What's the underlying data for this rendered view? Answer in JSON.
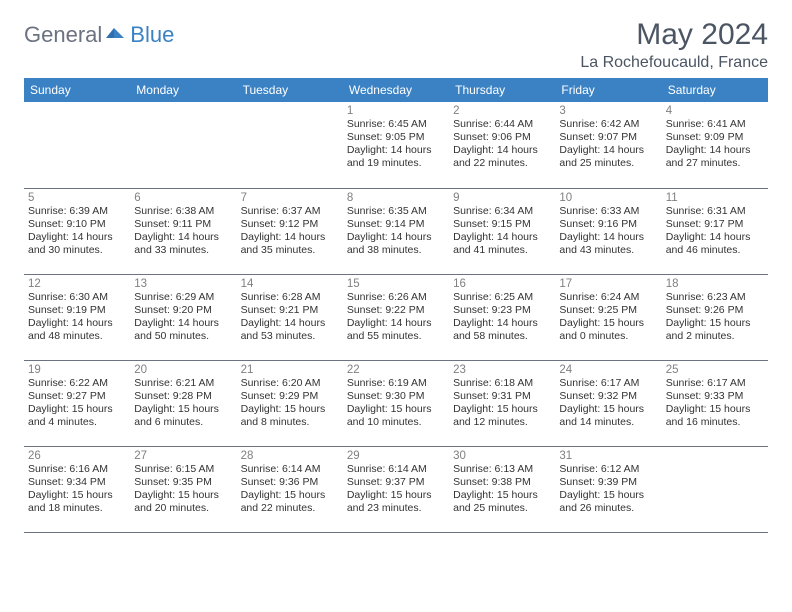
{
  "brand": {
    "part1": "General",
    "part2": "Blue"
  },
  "title": "May 2024",
  "location": "La Rochefoucauld, France",
  "weekdays": [
    "Sunday",
    "Monday",
    "Tuesday",
    "Wednesday",
    "Thursday",
    "Friday",
    "Saturday"
  ],
  "colors": {
    "header_bg": "#3b82c4",
    "header_text": "#ffffff",
    "daynum": "#808080",
    "body_text": "#333333",
    "rule": "#6b7280"
  },
  "grid": [
    [
      null,
      null,
      null,
      {
        "n": "1",
        "sr": "6:45 AM",
        "ss": "9:05 PM",
        "dl": "14 hours and 19 minutes."
      },
      {
        "n": "2",
        "sr": "6:44 AM",
        "ss": "9:06 PM",
        "dl": "14 hours and 22 minutes."
      },
      {
        "n": "3",
        "sr": "6:42 AM",
        "ss": "9:07 PM",
        "dl": "14 hours and 25 minutes."
      },
      {
        "n": "4",
        "sr": "6:41 AM",
        "ss": "9:09 PM",
        "dl": "14 hours and 27 minutes."
      }
    ],
    [
      {
        "n": "5",
        "sr": "6:39 AM",
        "ss": "9:10 PM",
        "dl": "14 hours and 30 minutes."
      },
      {
        "n": "6",
        "sr": "6:38 AM",
        "ss": "9:11 PM",
        "dl": "14 hours and 33 minutes."
      },
      {
        "n": "7",
        "sr": "6:37 AM",
        "ss": "9:12 PM",
        "dl": "14 hours and 35 minutes."
      },
      {
        "n": "8",
        "sr": "6:35 AM",
        "ss": "9:14 PM",
        "dl": "14 hours and 38 minutes."
      },
      {
        "n": "9",
        "sr": "6:34 AM",
        "ss": "9:15 PM",
        "dl": "14 hours and 41 minutes."
      },
      {
        "n": "10",
        "sr": "6:33 AM",
        "ss": "9:16 PM",
        "dl": "14 hours and 43 minutes."
      },
      {
        "n": "11",
        "sr": "6:31 AM",
        "ss": "9:17 PM",
        "dl": "14 hours and 46 minutes."
      }
    ],
    [
      {
        "n": "12",
        "sr": "6:30 AM",
        "ss": "9:19 PM",
        "dl": "14 hours and 48 minutes."
      },
      {
        "n": "13",
        "sr": "6:29 AM",
        "ss": "9:20 PM",
        "dl": "14 hours and 50 minutes."
      },
      {
        "n": "14",
        "sr": "6:28 AM",
        "ss": "9:21 PM",
        "dl": "14 hours and 53 minutes."
      },
      {
        "n": "15",
        "sr": "6:26 AM",
        "ss": "9:22 PM",
        "dl": "14 hours and 55 minutes."
      },
      {
        "n": "16",
        "sr": "6:25 AM",
        "ss": "9:23 PM",
        "dl": "14 hours and 58 minutes."
      },
      {
        "n": "17",
        "sr": "6:24 AM",
        "ss": "9:25 PM",
        "dl": "15 hours and 0 minutes."
      },
      {
        "n": "18",
        "sr": "6:23 AM",
        "ss": "9:26 PM",
        "dl": "15 hours and 2 minutes."
      }
    ],
    [
      {
        "n": "19",
        "sr": "6:22 AM",
        "ss": "9:27 PM",
        "dl": "15 hours and 4 minutes."
      },
      {
        "n": "20",
        "sr": "6:21 AM",
        "ss": "9:28 PM",
        "dl": "15 hours and 6 minutes."
      },
      {
        "n": "21",
        "sr": "6:20 AM",
        "ss": "9:29 PM",
        "dl": "15 hours and 8 minutes."
      },
      {
        "n": "22",
        "sr": "6:19 AM",
        "ss": "9:30 PM",
        "dl": "15 hours and 10 minutes."
      },
      {
        "n": "23",
        "sr": "6:18 AM",
        "ss": "9:31 PM",
        "dl": "15 hours and 12 minutes."
      },
      {
        "n": "24",
        "sr": "6:17 AM",
        "ss": "9:32 PM",
        "dl": "15 hours and 14 minutes."
      },
      {
        "n": "25",
        "sr": "6:17 AM",
        "ss": "9:33 PM",
        "dl": "15 hours and 16 minutes."
      }
    ],
    [
      {
        "n": "26",
        "sr": "6:16 AM",
        "ss": "9:34 PM",
        "dl": "15 hours and 18 minutes."
      },
      {
        "n": "27",
        "sr": "6:15 AM",
        "ss": "9:35 PM",
        "dl": "15 hours and 20 minutes."
      },
      {
        "n": "28",
        "sr": "6:14 AM",
        "ss": "9:36 PM",
        "dl": "15 hours and 22 minutes."
      },
      {
        "n": "29",
        "sr": "6:14 AM",
        "ss": "9:37 PM",
        "dl": "15 hours and 23 minutes."
      },
      {
        "n": "30",
        "sr": "6:13 AM",
        "ss": "9:38 PM",
        "dl": "15 hours and 25 minutes."
      },
      {
        "n": "31",
        "sr": "6:12 AM",
        "ss": "9:39 PM",
        "dl": "15 hours and 26 minutes."
      },
      null
    ]
  ],
  "labels": {
    "sunrise": "Sunrise:",
    "sunset": "Sunset:",
    "daylight": "Daylight:"
  }
}
